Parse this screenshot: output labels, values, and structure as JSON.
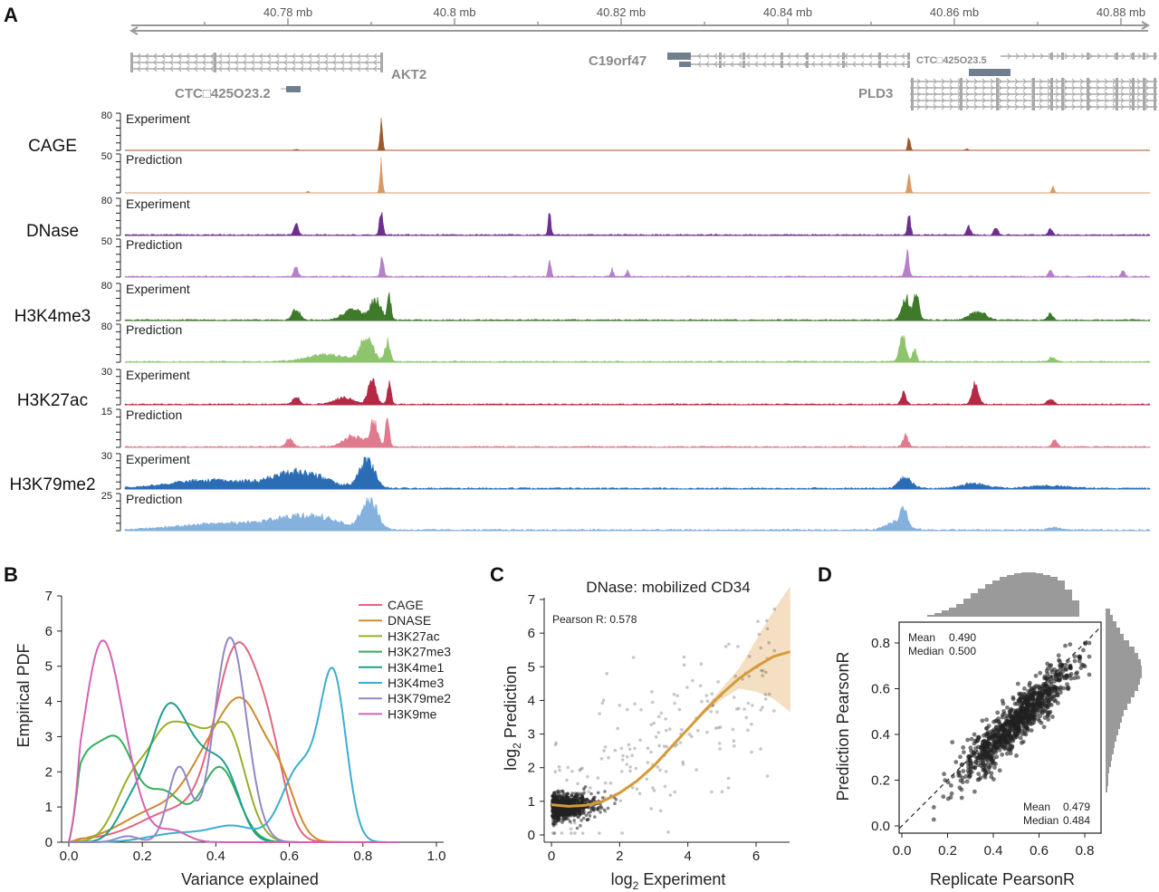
{
  "panel_labels": [
    "A",
    "B",
    "C",
    "D"
  ],
  "panel_a": {
    "coords": [
      "40.78 mb",
      "40.8 mb",
      "40.82 mb",
      "40.84 mb",
      "40.86 mb",
      "40.88 mb"
    ],
    "genes": {
      "akt2": "AKT2",
      "ctc2": "CTC□425O23.2",
      "c19orf47": "C19orf47",
      "ctc5": "CTC□425O23.5",
      "pld3": "PLD3"
    },
    "exp_label": "Experiment",
    "pred_label": "Prediction",
    "tracks": [
      {
        "name": "CAGE",
        "exp_max": "80",
        "pred_max": "50",
        "exp_color": "#a0582a",
        "pred_color": "#d99a66"
      },
      {
        "name": "DNase",
        "exp_max": "80",
        "pred_max": "50",
        "exp_color": "#6d2f8e",
        "pred_color": "#b77ec9"
      },
      {
        "name": "H3K4me3",
        "exp_max": "80",
        "pred_max": "80",
        "exp_color": "#3f7a2b",
        "pred_color": "#8fc46e"
      },
      {
        "name": "H3K27ac",
        "exp_max": "30",
        "pred_max": "15",
        "exp_color": "#b42a45",
        "pred_color": "#e07a8e"
      },
      {
        "name": "H3K79me2",
        "exp_max": "30",
        "pred_max": "25",
        "exp_color": "#2b6db5",
        "pred_color": "#84b1de"
      }
    ]
  },
  "chart_data": [
    {
      "type": "line",
      "panel": "B",
      "xlabel": "Variance explained",
      "ylabel": "Empirical PDF",
      "xlim": [
        0.0,
        1.0
      ],
      "ylim": [
        0,
        7
      ],
      "xticks": [
        "0.0",
        "0.2",
        "0.4",
        "0.6",
        "0.8",
        "1.0"
      ],
      "yticks": [
        "0",
        "1",
        "2",
        "3",
        "4",
        "5",
        "6",
        "7"
      ],
      "legend_position": "top-right",
      "series": [
        {
          "name": "CAGE",
          "color": "#e5647f",
          "peaks": [
            [
              0.12,
              0.1,
              0.25
            ],
            [
              0.3,
              1.0,
              0.1
            ],
            [
              0.46,
              6.2,
              0.06
            ],
            [
              0.55,
              2.0,
              0.04
            ]
          ]
        },
        {
          "name": "DNASE",
          "color": "#cc8a2e",
          "peaks": [
            [
              0.25,
              1.1,
              0.1
            ],
            [
              0.38,
              2.0,
              0.06
            ],
            [
              0.48,
              4.1,
              0.06
            ],
            [
              0.58,
              1.5,
              0.04
            ]
          ]
        },
        {
          "name": "H3K27ac",
          "color": "#9aae28",
          "peaks": [
            [
              0.18,
              2.2,
              0.05
            ],
            [
              0.26,
              2.4,
              0.04
            ],
            [
              0.33,
              2.9,
              0.045
            ],
            [
              0.43,
              3.7,
              0.05
            ]
          ]
        },
        {
          "name": "H3K27me3",
          "color": "#33b05a",
          "peaks": [
            [
              0.04,
              2.2,
              0.04
            ],
            [
              0.13,
              3.3,
              0.05
            ],
            [
              0.26,
              1.6,
              0.05
            ],
            [
              0.41,
              2.5,
              0.05
            ]
          ]
        },
        {
          "name": "H3K4me1",
          "color": "#1f9e8e",
          "peaks": [
            [
              0.17,
              1.1,
              0.04
            ],
            [
              0.27,
              4.3,
              0.05
            ],
            [
              0.36,
              2.0,
              0.045
            ],
            [
              0.43,
              1.9,
              0.04
            ]
          ]
        },
        {
          "name": "H3K4me3",
          "color": "#3aaed0",
          "peaks": [
            [
              0.3,
              0.3,
              0.08
            ],
            [
              0.45,
              0.5,
              0.06
            ],
            [
              0.63,
              2.5,
              0.05
            ],
            [
              0.72,
              5.3,
              0.035
            ]
          ]
        },
        {
          "name": "H3K79me2",
          "color": "#9486c5",
          "peaks": [
            [
              0.16,
              0.2,
              0.03
            ],
            [
              0.3,
              2.5,
              0.03
            ],
            [
              0.43,
              5.5,
              0.04
            ],
            [
              0.47,
              2.0,
              0.04
            ]
          ]
        },
        {
          "name": "H3K9me",
          "color": "#d463b4",
          "peaks": [
            [
              0.09,
              6.6,
              0.05
            ],
            [
              0.17,
              1.0,
              0.04
            ],
            [
              0.28,
              0.4,
              0.04
            ]
          ]
        }
      ]
    },
    {
      "type": "scatter",
      "panel": "C",
      "title": "DNase: mobilized CD34",
      "annotation": "Pearson R: 0.578",
      "xlabel": "log2 Experiment",
      "xlabel_base": "log",
      "xlabel_sub": "2",
      "xlabel_rest": " Experiment",
      "ylabel_base": "log",
      "ylabel_sub": "2",
      "ylabel_rest": " Prediction",
      "xlim": [
        -0.2,
        7
      ],
      "ylim": [
        -0.2,
        7.2
      ],
      "xticks": [
        "0",
        "2",
        "4",
        "6"
      ],
      "yticks": [
        "0",
        "1",
        "2",
        "3",
        "4",
        "5",
        "6",
        "7"
      ],
      "point_color": "#222222",
      "fit_color": "#d69a3a",
      "fit_band_color": "#f4dfc2",
      "fit": [
        [
          0,
          0.9
        ],
        [
          0.5,
          0.85
        ],
        [
          1,
          0.88
        ],
        [
          1.5,
          1.0
        ],
        [
          2,
          1.25
        ],
        [
          2.5,
          1.6
        ],
        [
          3,
          2.05
        ],
        [
          3.5,
          2.6
        ],
        [
          4,
          3.15
        ],
        [
          4.5,
          3.7
        ],
        [
          5,
          4.2
        ],
        [
          5.5,
          4.65
        ],
        [
          6,
          5.0
        ],
        [
          6.5,
          5.3
        ],
        [
          7,
          5.45
        ]
      ],
      "n_points": 1200
    },
    {
      "type": "scatter",
      "panel": "D",
      "xlabel": "Replicate PearsonR",
      "ylabel": "Prediction PearsonR",
      "xlim": [
        -0.02,
        0.9
      ],
      "ylim": [
        -0.04,
        0.88
      ],
      "xticks": [
        "0.0",
        "0.2",
        "0.4",
        "0.6",
        "0.8"
      ],
      "yticks": [
        "0.0",
        "0.2",
        "0.4",
        "0.6",
        "0.8"
      ],
      "stats_top": {
        "mean_label": "Mean",
        "mean": "0.490",
        "median_label": "Median",
        "median": "0.500"
      },
      "stats_bottom": {
        "mean_label": "Mean",
        "mean": "0.479",
        "median_label": "Median",
        "median": "0.484"
      },
      "point_color": "#222222",
      "hist_color": "#9a9a9a",
      "n_points": 1000
    }
  ]
}
